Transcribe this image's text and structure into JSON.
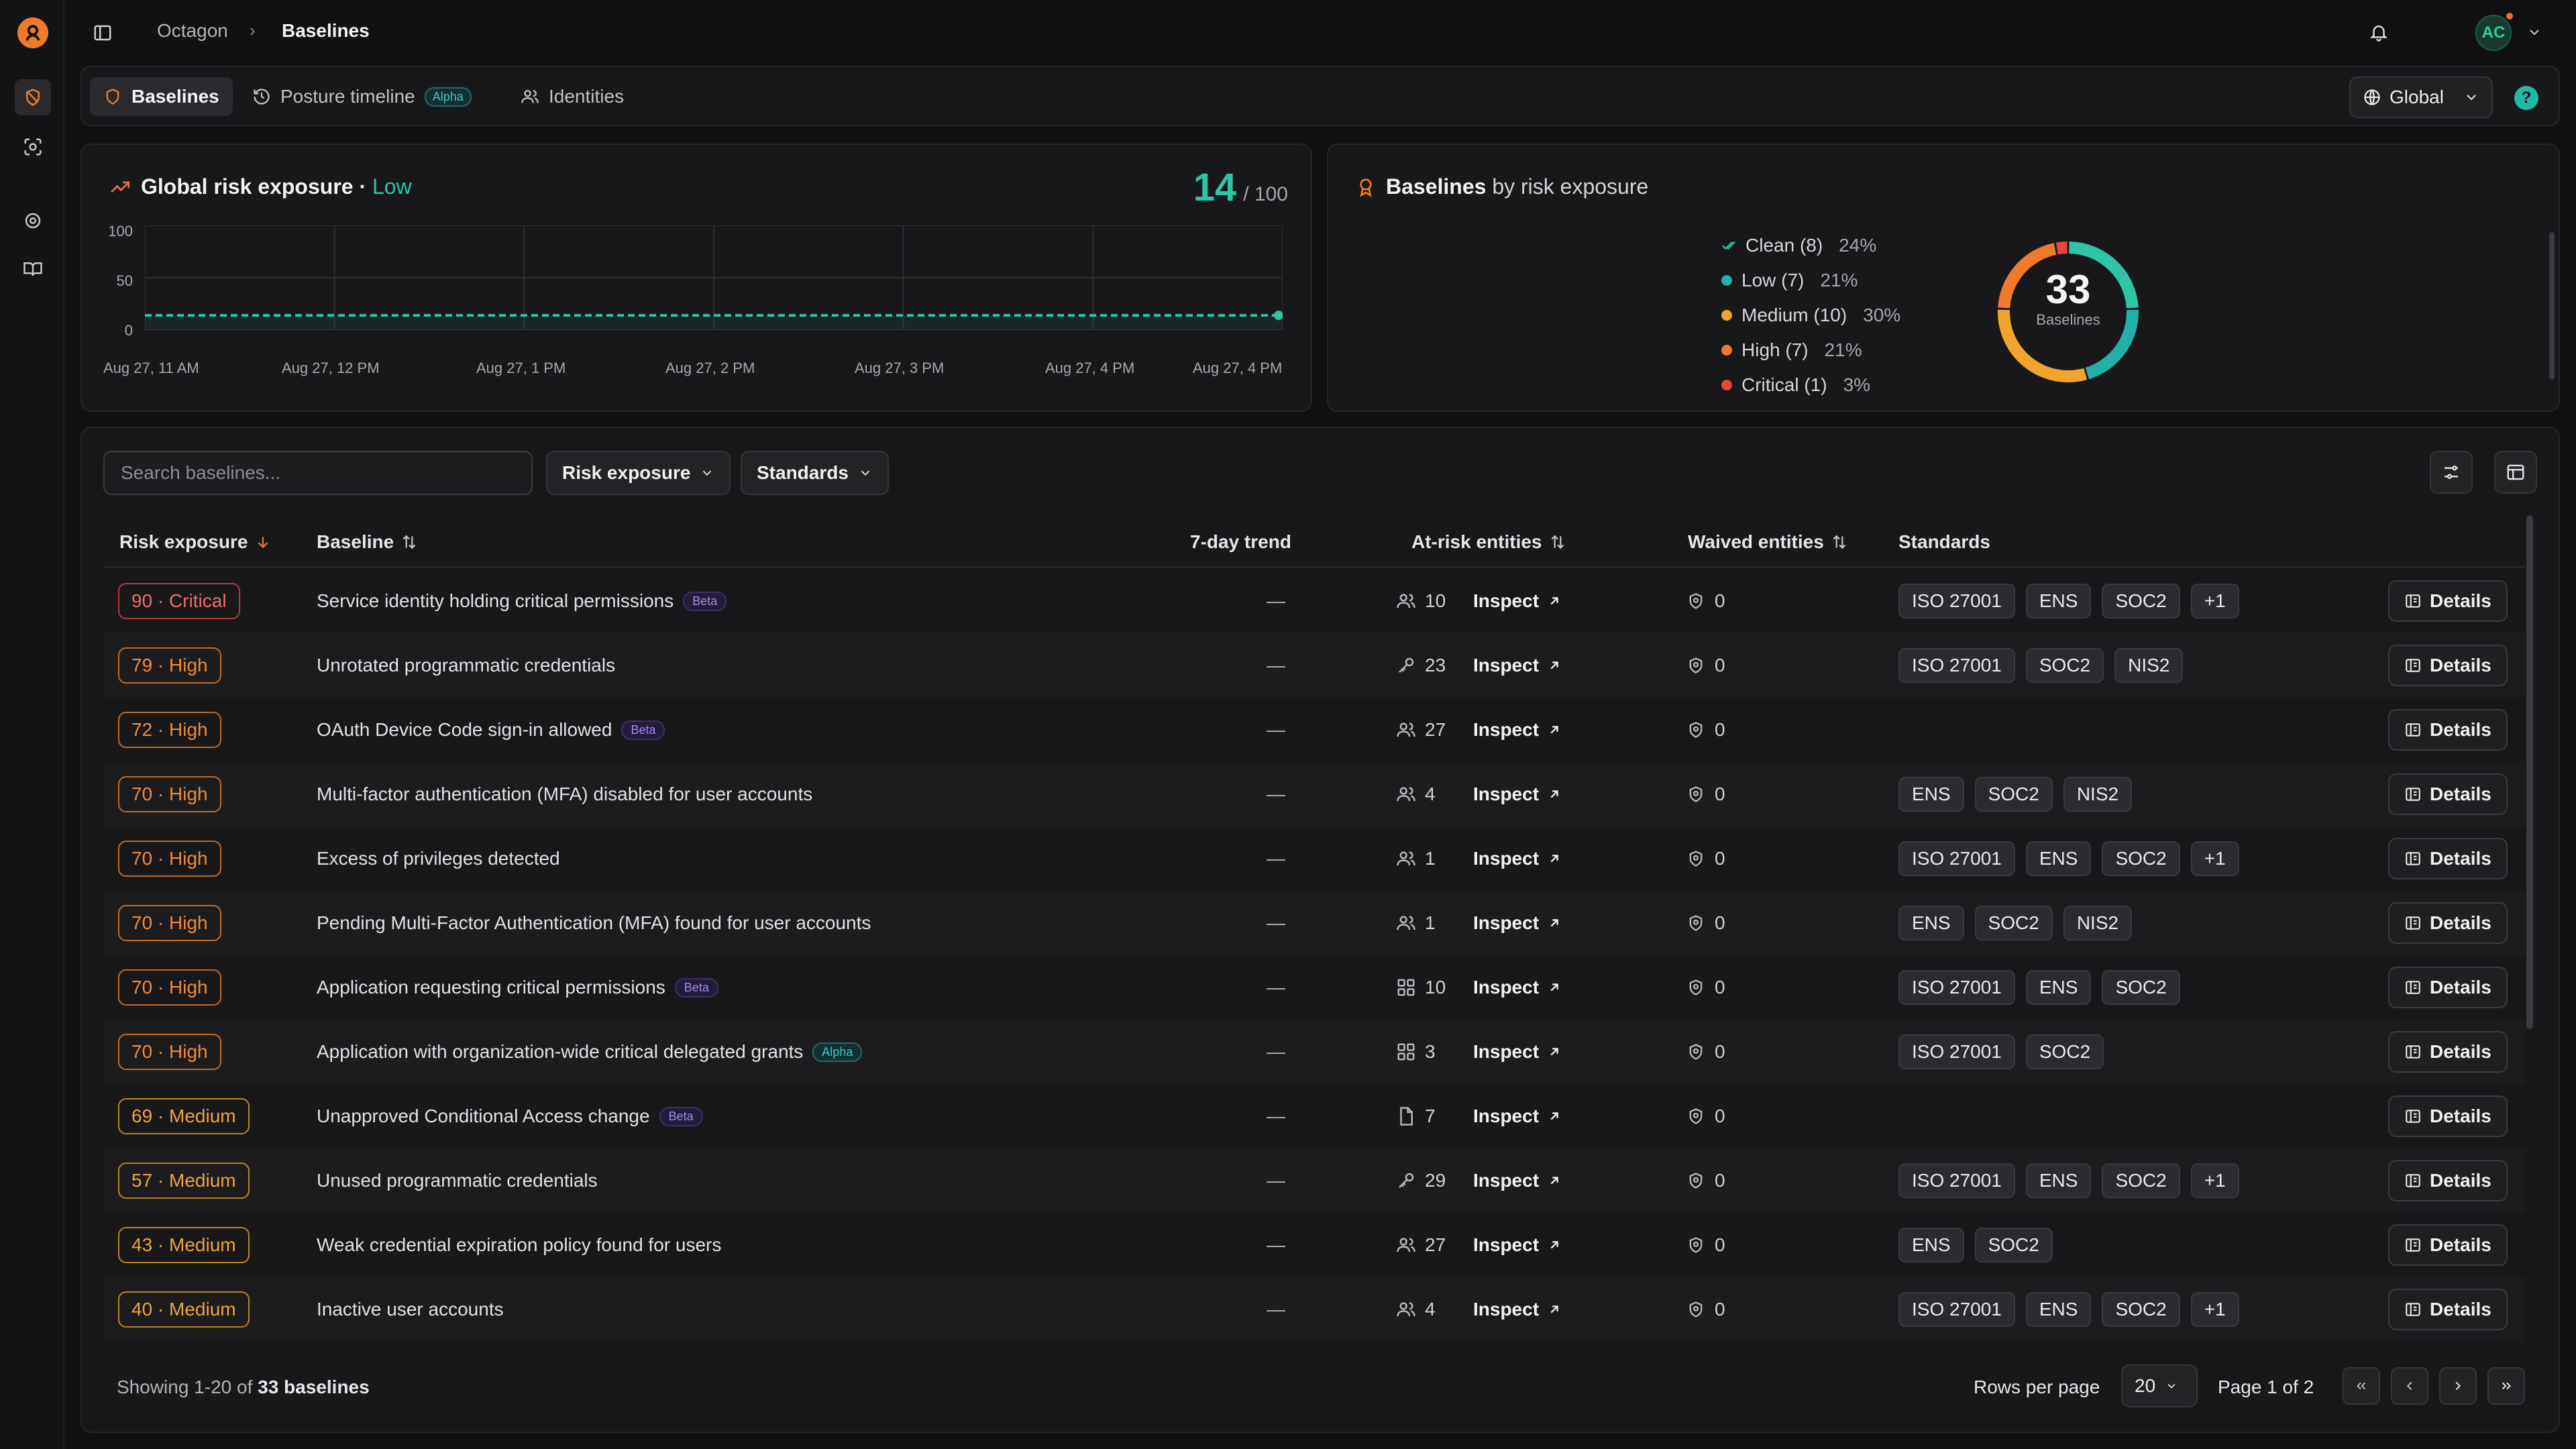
{
  "breadcrumb": {
    "root": "Octagon",
    "separator": "›",
    "current": "Baselines"
  },
  "user": {
    "initials": "AC"
  },
  "tabs": [
    {
      "label": "Baselines"
    },
    {
      "label": "Posture timeline",
      "badge": "Alpha"
    },
    {
      "label": "Identities"
    }
  ],
  "scope": {
    "label": "Global"
  },
  "help": {
    "label": "?"
  },
  "risk_card": {
    "title": "Global risk exposure",
    "separator": "·",
    "level": "Low",
    "score": "14",
    "score_max": "/ 100",
    "y_ticks": [
      "100",
      "50",
      "0"
    ],
    "x_ticks": [
      "Aug 27, 11 AM",
      "Aug 27, 12 PM",
      "Aug 27, 1 PM",
      "Aug 27, 2 PM",
      "Aug 27, 3 PM",
      "Aug 27, 4 PM",
      "Aug 27, 4 PM"
    ]
  },
  "chart_data": {
    "type": "line",
    "title": "Global risk exposure",
    "x": [
      "Aug 27, 11 AM",
      "Aug 27, 12 PM",
      "Aug 27, 1 PM",
      "Aug 27, 2 PM",
      "Aug 27, 3 PM",
      "Aug 27, 4 PM",
      "Aug 27, 4 PM"
    ],
    "series": [
      {
        "values": [
          14,
          14,
          14,
          14,
          14,
          14,
          14
        ]
      }
    ],
    "ylim": [
      0,
      100
    ],
    "grid": true,
    "color": "#2ec4a6"
  },
  "baselines_card": {
    "title_strong": "Baselines",
    "title_rest": "by risk exposure",
    "total": "33",
    "total_label": "Baselines",
    "legend": [
      {
        "label": "Clean (8)",
        "pct": "24%",
        "color": "#2ec4a6",
        "value": 8
      },
      {
        "label": "Low (7)",
        "pct": "21%",
        "color": "#22b0a8",
        "value": 7
      },
      {
        "label": "Medium (10)",
        "pct": "30%",
        "color": "#f2a52e",
        "value": 10
      },
      {
        "label": "High (7)",
        "pct": "21%",
        "color": "#f07a2a",
        "value": 7
      },
      {
        "label": "Critical (1)",
        "pct": "3%",
        "color": "#e8453c",
        "value": 1
      }
    ]
  },
  "table": {
    "search_placeholder": "Search baselines...",
    "filters": [
      "Risk exposure",
      "Standards"
    ],
    "headers": {
      "risk": "Risk exposure",
      "baseline": "Baseline",
      "trend": "7-day trend",
      "at_risk": "At-risk entities",
      "waived": "Waived entities",
      "standards": "Standards"
    },
    "inspect_label": "Inspect",
    "details_label": "Details",
    "trend_placeholder": "—",
    "rows": [
      {
        "risk": "90 · Critical",
        "level": "critical",
        "name": "Service identity holding critical permissions",
        "tag": "Beta",
        "entity_icon": "users-icon",
        "count": "10",
        "waived": "0",
        "standards": [
          "ISO 27001",
          "ENS",
          "SOC2",
          "+1"
        ]
      },
      {
        "risk": "79 · High",
        "level": "high",
        "name": "Unrotated programmatic credentials",
        "tag": "",
        "entity_icon": "key-icon",
        "count": "23",
        "waived": "0",
        "standards": [
          "ISO 27001",
          "SOC2",
          "NIS2"
        ]
      },
      {
        "risk": "72 · High",
        "level": "high",
        "name": "OAuth Device Code sign-in allowed",
        "tag": "Beta",
        "entity_icon": "users-icon",
        "count": "27",
        "waived": "0",
        "standards": []
      },
      {
        "risk": "70 · High",
        "level": "high",
        "name": "Multi-factor authentication (MFA) disabled for user accounts",
        "tag": "",
        "entity_icon": "users-icon",
        "count": "4",
        "waived": "0",
        "standards": [
          "ENS",
          "SOC2",
          "NIS2"
        ]
      },
      {
        "risk": "70 · High",
        "level": "high",
        "name": "Excess of privileges detected",
        "tag": "",
        "entity_icon": "users-icon",
        "count": "1",
        "waived": "0",
        "standards": [
          "ISO 27001",
          "ENS",
          "SOC2",
          "+1"
        ]
      },
      {
        "risk": "70 · High",
        "level": "high",
        "name": "Pending Multi-Factor Authentication (MFA) found for user accounts",
        "tag": "",
        "entity_icon": "users-icon",
        "count": "1",
        "waived": "0",
        "standards": [
          "ENS",
          "SOC2",
          "NIS2"
        ]
      },
      {
        "risk": "70 · High",
        "level": "high",
        "name": "Application requesting critical permissions",
        "tag": "Beta",
        "entity_icon": "apps-icon",
        "count": "10",
        "waived": "0",
        "standards": [
          "ISO 27001",
          "ENS",
          "SOC2"
        ]
      },
      {
        "risk": "70 · High",
        "level": "high",
        "name": "Application with organization-wide critical delegated grants",
        "tag": "Alpha",
        "entity_icon": "apps-icon",
        "count": "3",
        "waived": "0",
        "standards": [
          "ISO 27001",
          "SOC2"
        ]
      },
      {
        "risk": "69 · Medium",
        "level": "medium",
        "name": "Unapproved Conditional Access change",
        "tag": "Beta",
        "entity_icon": "file-icon",
        "count": "7",
        "waived": "0",
        "standards": []
      },
      {
        "risk": "57 · Medium",
        "level": "medium",
        "name": "Unused programmatic credentials",
        "tag": "",
        "entity_icon": "key-icon",
        "count": "29",
        "waived": "0",
        "standards": [
          "ISO 27001",
          "ENS",
          "SOC2",
          "+1"
        ]
      },
      {
        "risk": "43 · Medium",
        "level": "medium",
        "name": "Weak credential expiration policy found for users",
        "tag": "",
        "entity_icon": "users-icon",
        "count": "27",
        "waived": "0",
        "standards": [
          "ENS",
          "SOC2"
        ]
      },
      {
        "risk": "40 · Medium",
        "level": "medium",
        "name": "Inactive user accounts",
        "tag": "",
        "entity_icon": "users-icon",
        "count": "4",
        "waived": "0",
        "standards": [
          "ISO 27001",
          "ENS",
          "SOC2",
          "+1"
        ]
      }
    ]
  },
  "footer": {
    "showing_prefix": "Showing 1-20 of",
    "showing_count": "33 baselines",
    "rows_per_page_label": "Rows per page",
    "rows_per_page_value": "20",
    "page_text": "Page 1 of 2"
  }
}
